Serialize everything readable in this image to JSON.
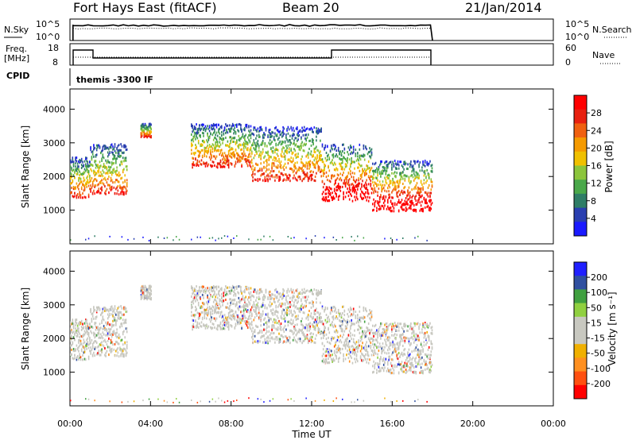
{
  "header": {
    "radar": "Fort Hays East (fitACF)",
    "beam": "Beam 20",
    "date": "21/Jan/2014"
  },
  "nsky_panel": {
    "left_label": "N.Sky",
    "right_label_top": "N.Search",
    "left_ticks": [
      "10^5",
      "10^0"
    ],
    "right_ticks": [
      "10^5",
      "10^0"
    ]
  },
  "freq_panel": {
    "left_label_top": "Freq.",
    "left_label_bottom": "[MHz]",
    "right_label": "Nave",
    "left_ticks": [
      "18",
      "8"
    ],
    "right_ticks": [
      "60",
      "0"
    ]
  },
  "cpid_panel": {
    "label": "CPID",
    "program": "themis -3300 IF"
  },
  "colors": {
    "power_scale": [
      "#1a1aff",
      "#2a3fb0",
      "#2f7d66",
      "#4aa84a",
      "#8cc53c",
      "#f0c000",
      "#f59a00",
      "#f06010",
      "#e82010",
      "#ff0000"
    ],
    "velocity_scale": [
      "#ff0000",
      "#ff5010",
      "#ff9020",
      "#f0b000",
      "#c8c8c0",
      "#c8c8c0",
      "#90d040",
      "#40a040",
      "#3050a0",
      "#2020ff"
    ]
  },
  "chart_data": [
    {
      "type": "heatmap",
      "name": "power",
      "xlabel": "",
      "ylabel": "Slant Range [km]",
      "x_range_hours": [
        0,
        24
      ],
      "ylim": [
        0,
        4600
      ],
      "y_ticks": [
        1000,
        2000,
        3000,
        4000
      ],
      "colorbar": {
        "label": "Power [dB]",
        "range": [
          0,
          32
        ],
        "ticks": [
          4,
          8,
          12,
          16,
          20,
          24,
          28
        ]
      },
      "scatter_bands": [
        {
          "t_start": 0.0,
          "t_end": 1.0,
          "range_low": 1400,
          "range_high": 2600
        },
        {
          "t_start": 1.0,
          "t_end": 2.8,
          "range_low": 1500,
          "range_high": 3000
        },
        {
          "t_start": 3.5,
          "t_end": 4.0,
          "range_low": 3200,
          "range_high": 3600
        },
        {
          "t_start": 6.0,
          "t_end": 9.0,
          "range_low": 2300,
          "range_high": 3600
        },
        {
          "t_start": 9.0,
          "t_end": 12.5,
          "range_low": 1900,
          "range_high": 3500
        },
        {
          "t_start": 12.5,
          "t_end": 15.0,
          "range_low": 1300,
          "range_high": 3000
        },
        {
          "t_start": 15.0,
          "t_end": 18.0,
          "range_low": 1000,
          "range_high": 2500
        }
      ]
    },
    {
      "type": "heatmap",
      "name": "velocity",
      "xlabel": "Time UT",
      "ylabel": "Slant Range [km]",
      "x_range_hours": [
        0,
        24
      ],
      "ylim": [
        0,
        4600
      ],
      "y_ticks": [
        1000,
        2000,
        3000,
        4000
      ],
      "x_ticks": [
        "00:00",
        "04:00",
        "08:00",
        "12:00",
        "16:00",
        "20:00",
        "00:00"
      ],
      "colorbar": {
        "label": "Velocity [m s⁻¹]",
        "ticks": [
          -200,
          -100,
          -50,
          -15,
          15,
          50,
          100,
          200
        ]
      }
    }
  ]
}
